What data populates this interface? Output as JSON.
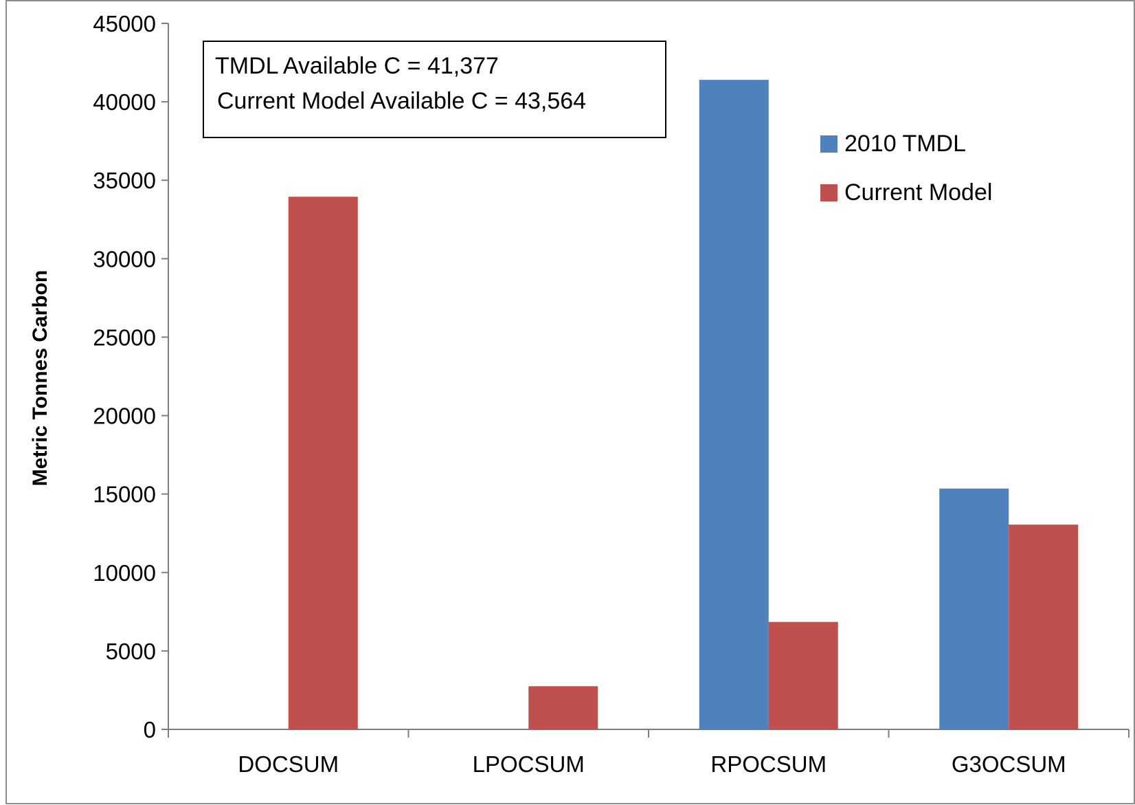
{
  "chart_data": {
    "type": "bar",
    "title": "",
    "xlabel": "",
    "ylabel": "Metric Tonnes Carbon",
    "ylim": [
      0,
      45000
    ],
    "yticks": [
      0,
      5000,
      10000,
      15000,
      20000,
      25000,
      30000,
      35000,
      40000,
      45000
    ],
    "categories": [
      "DOCSUM",
      "LPOCSUM",
      "RPOCSUM",
      "G3OCSUM"
    ],
    "series": [
      {
        "name": "2010 TMDL",
        "color": "#4f81bd",
        "values": [
          0,
          0,
          41400,
          15350
        ]
      },
      {
        "name": "Current Model",
        "color": "#c0504d",
        "values": [
          33950,
          2750,
          6850,
          13050
        ]
      }
    ],
    "grid": false,
    "legend": "right",
    "annotation": {
      "lines": [
        "TMDL Available C = 41,377",
        "Current Model Available C = 43,564"
      ]
    }
  }
}
